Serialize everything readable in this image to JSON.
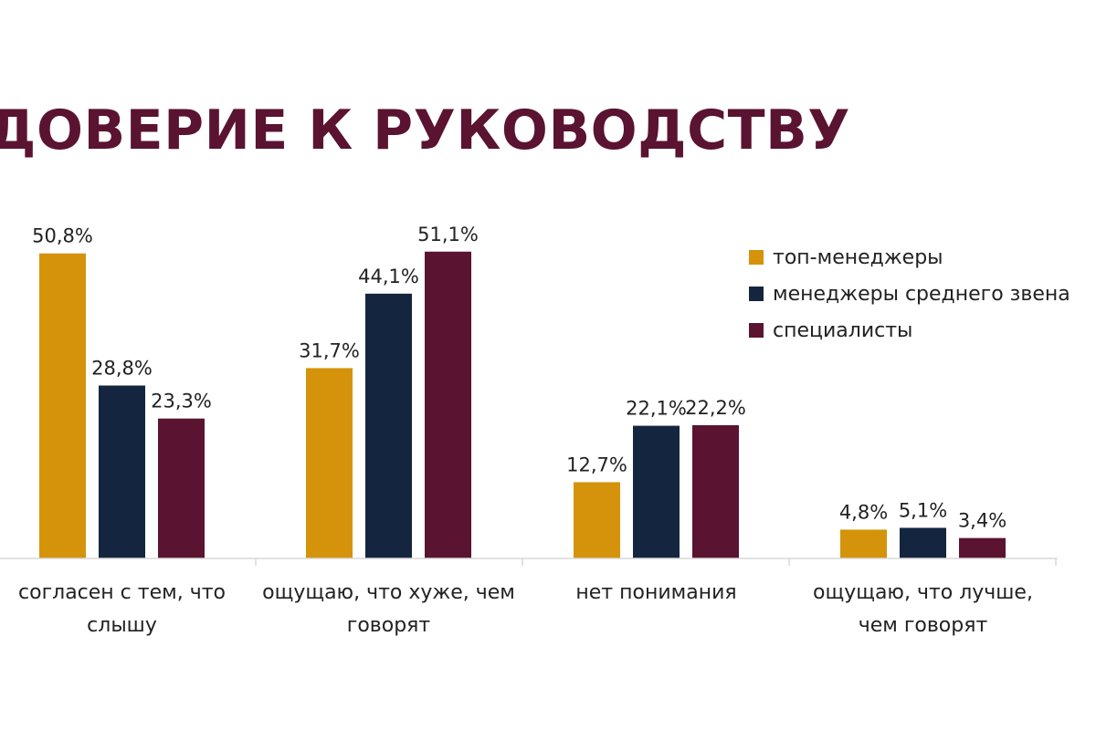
{
  "title": "ДОВЕРИЕ К РУКОВОДСТВУ",
  "chart_data": {
    "type": "bar",
    "title": "ДОВЕРИЕ К РУКОВОДСТВУ",
    "xlabel": "",
    "ylabel": "",
    "ylim": [
      0,
      55
    ],
    "grid": false,
    "legend_position": "top-right",
    "categories": [
      [
        "согласен с тем, что",
        "слышу"
      ],
      [
        "ощущаю, что хуже, чем",
        "говорят"
      ],
      [
        "нет понимания"
      ],
      [
        "ощущаю, что лучше,",
        "чем говорят"
      ]
    ],
    "series": [
      {
        "name": "топ-менеджеры",
        "color": "#d4930a",
        "values": [
          50.8,
          31.7,
          12.7,
          4.8
        ],
        "labels": [
          "50,8%",
          "31,7%",
          "12,7%",
          "4,8%"
        ]
      },
      {
        "name": "менеджеры среднего звена",
        "color": "#14263f",
        "values": [
          28.8,
          44.1,
          22.1,
          5.1
        ],
        "labels": [
          "28,8%",
          "44,1%",
          "22,1%",
          "5,1%"
        ]
      },
      {
        "name": "специалисты",
        "color": "#5a1330",
        "values": [
          23.3,
          51.1,
          22.2,
          3.4
        ],
        "labels": [
          "23,3%",
          "51,1%",
          "22,2%",
          "3,4%"
        ]
      }
    ]
  }
}
